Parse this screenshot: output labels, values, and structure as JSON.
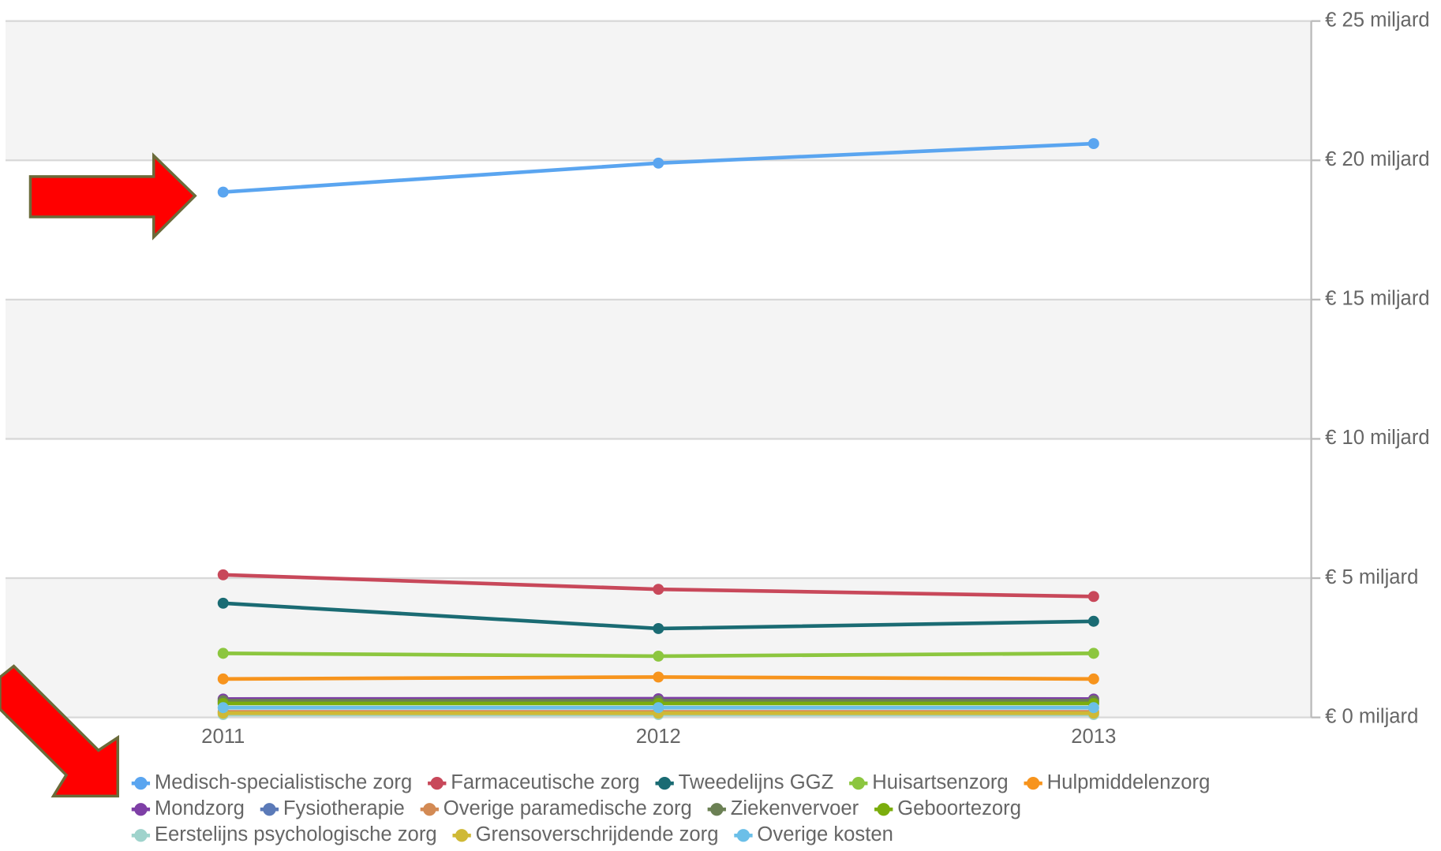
{
  "chart_data": {
    "type": "line",
    "categories": [
      "2011",
      "2012",
      "2013"
    ],
    "ylim": [
      0,
      25
    ],
    "yticks": [
      {
        "value": 0,
        "label": "€ 0 miljard"
      },
      {
        "value": 5,
        "label": "€ 5 miljard"
      },
      {
        "value": 10,
        "label": "€ 10 miljard"
      },
      {
        "value": 15,
        "label": "€ 15 miljard"
      },
      {
        "value": 20,
        "label": "€ 20 miljard"
      },
      {
        "value": 25,
        "label": "€ 25 miljard"
      }
    ],
    "grid": true,
    "series": [
      {
        "name": "Medisch-specialistische zorg",
        "color": "#5aa5f0",
        "values": [
          18.86,
          19.9,
          20.6
        ]
      },
      {
        "name": "Farmaceutische zorg",
        "color": "#c8485a",
        "values": [
          5.12,
          4.6,
          4.34
        ]
      },
      {
        "name": "Tweedelijns GGZ",
        "color": "#1a6b73",
        "values": [
          4.1,
          3.19,
          3.45
        ]
      },
      {
        "name": "Huisartsenzorg",
        "color": "#8cc63f",
        "values": [
          2.3,
          2.2,
          2.3
        ]
      },
      {
        "name": "Hulpmiddelenzorg",
        "color": "#f7941d",
        "values": [
          1.38,
          1.45,
          1.38
        ]
      },
      {
        "name": "Mondzorg",
        "color": "#7e3fa6",
        "values": [
          0.66,
          0.67,
          0.66
        ]
      },
      {
        "name": "Fysiotherapie",
        "color": "#5b7ab8",
        "values": [
          0.55,
          0.55,
          0.55
        ]
      },
      {
        "name": "Overige paramedische zorg",
        "color": "#d38a54",
        "values": [
          0.2,
          0.2,
          0.2
        ]
      },
      {
        "name": "Ziekenvervoer",
        "color": "#6b8054",
        "values": [
          0.6,
          0.6,
          0.6
        ]
      },
      {
        "name": "Geboortezorg",
        "color": "#7bad0d",
        "values": [
          0.5,
          0.5,
          0.5
        ]
      },
      {
        "name": "Eerstelijns psychologische zorg",
        "color": "#9fd3cc",
        "values": [
          0.1,
          0.1,
          0.1
        ]
      },
      {
        "name": "Grensoverschrijdende zorg",
        "color": "#cfb936",
        "values": [
          0.15,
          0.15,
          0.15
        ]
      },
      {
        "name": "Overige kosten",
        "color": "#6bbfe8",
        "values": [
          0.35,
          0.35,
          0.35
        ]
      }
    ],
    "legend": "bottom"
  }
}
